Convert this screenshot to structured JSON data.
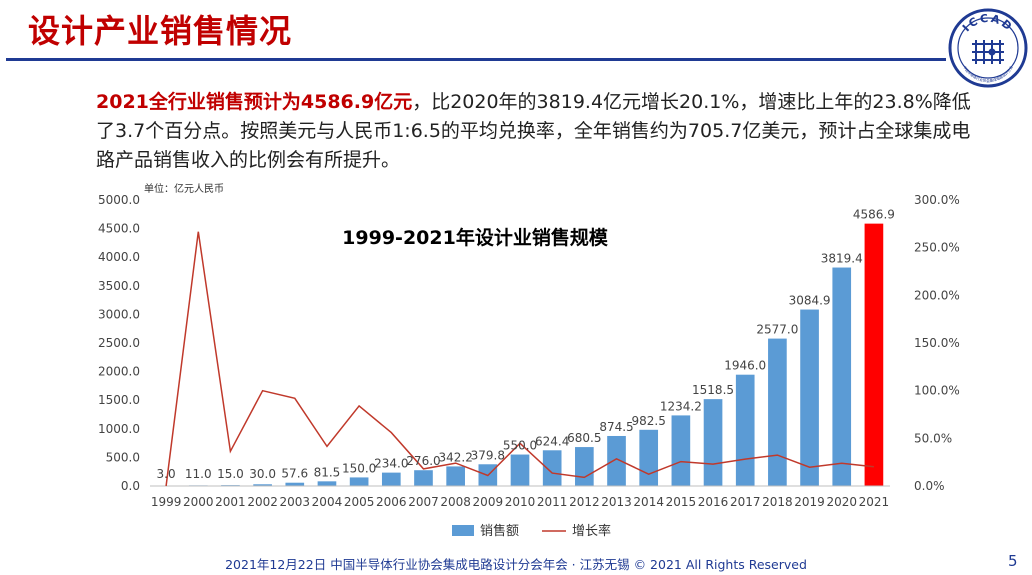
{
  "slide": {
    "title": "设计产业销售情况",
    "logo_text": "ICCAD",
    "logo_subtext": "中国半导体行业协会集成电路设计分会",
    "summary_highlight": "2021全行业销售预计为4586.9亿元",
    "summary_rest": "，比2020年的3819.4亿元增长20.1%，增速比上年的23.8%降低了3.7个百分点。按照美元与人民币1:6.5的平均兑换率，全年销售约为705.7亿美元，预计占全球集成电路产品销售收入的比例会有所提升。",
    "footer": "2021年12月22日 中国半导体行业协会集成电路设计分会年会 · 江苏无锡 © 2021 All Rights Reserved",
    "page_number": "5"
  },
  "colors": {
    "bar": "#5b9bd5",
    "bar_highlight": "#ff0000",
    "line": "#c0392b",
    "title": "#c00000",
    "brand": "#1f3a93"
  },
  "chart_data": {
    "type": "bar",
    "title": "1999-2021年设计业销售规模",
    "unit_label": "单位：亿元人民币",
    "categories": [
      "1999",
      "2000",
      "2001",
      "2002",
      "2003",
      "2004",
      "2005",
      "2006",
      "2007",
      "2008",
      "2009",
      "2010",
      "2011",
      "2012",
      "2013",
      "2014",
      "2015",
      "2016",
      "2017",
      "2018",
      "2019",
      "2020",
      "2021"
    ],
    "series": [
      {
        "name": "销售额",
        "type": "bar",
        "axis": "left",
        "values": [
          3.0,
          11.0,
          15.0,
          30.0,
          57.6,
          81.5,
          150.0,
          234.0,
          276.0,
          342.2,
          379.8,
          550.0,
          624.4,
          680.5,
          874.5,
          982.5,
          1234.2,
          1518.5,
          1946.0,
          2577.0,
          3084.9,
          3819.4,
          4586.9
        ],
        "labels": [
          "3.0",
          "11.0",
          "15.0",
          "30.0",
          "57.6",
          "81.5",
          "150.0",
          "234.0",
          "276.0",
          "342.2",
          "379.8",
          "550.0",
          "624.4",
          "680.5",
          "874.5",
          "982.5",
          "1234.2",
          "1518.5",
          "1946.0",
          "2577.0",
          "3084.9",
          "3819.4",
          "4586.9"
        ],
        "highlight_last": true
      },
      {
        "name": "增长率",
        "type": "line",
        "axis": "right",
        "values": [
          0,
          266.7,
          36.4,
          100.0,
          92.0,
          41.5,
          84.0,
          56.0,
          17.9,
          24.0,
          11.0,
          44.8,
          13.5,
          9.0,
          28.5,
          12.4,
          25.6,
          23.0,
          28.2,
          32.4,
          19.7,
          23.8,
          20.1
        ]
      }
    ],
    "ylim_left": [
      0,
      5000
    ],
    "yticks_left": [
      "0.0",
      "500.0",
      "1000.0",
      "1500.0",
      "2000.0",
      "2500.0",
      "3000.0",
      "3500.0",
      "4000.0",
      "4500.0",
      "5000.0"
    ],
    "ylim_right": [
      0,
      300
    ],
    "yticks_right": [
      "0.0%",
      "50.0%",
      "100.0%",
      "150.0%",
      "200.0%",
      "250.0%",
      "300.0%"
    ],
    "legend_position": "bottom",
    "grid": false
  }
}
